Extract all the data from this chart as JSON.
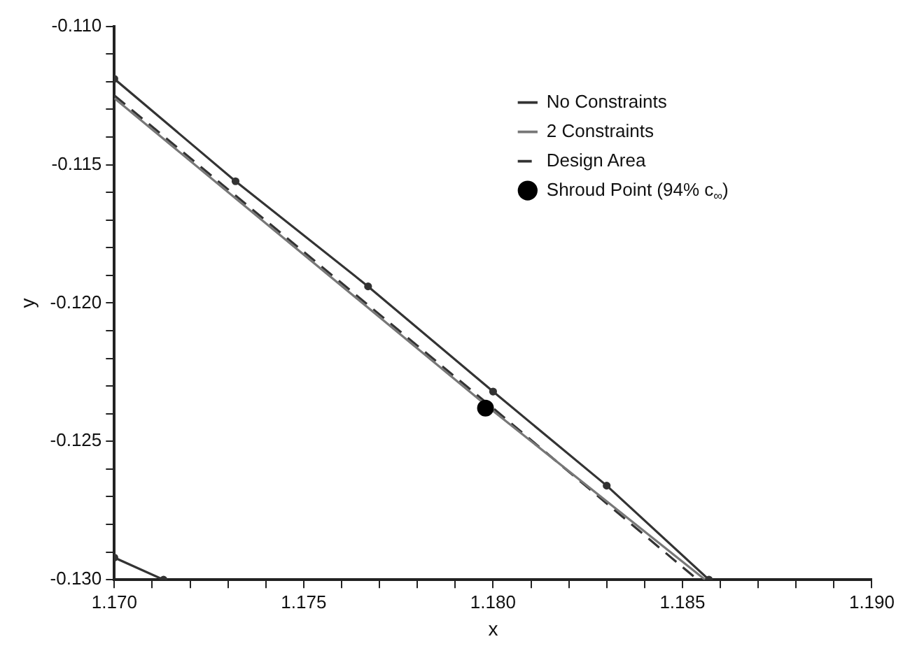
{
  "chart_data": {
    "type": "line",
    "xlabel": "x",
    "ylabel": "y",
    "xlim": [
      1.17,
      1.19
    ],
    "ylim": [
      -0.13,
      -0.11
    ],
    "xticks": [
      {
        "value": 1.17,
        "label": "1.170"
      },
      {
        "value": 1.171,
        "label": null
      },
      {
        "value": 1.172,
        "label": null
      },
      {
        "value": 1.173,
        "label": null
      },
      {
        "value": 1.174,
        "label": null
      },
      {
        "value": 1.175,
        "label": "1.175"
      },
      {
        "value": 1.176,
        "label": null
      },
      {
        "value": 1.177,
        "label": null
      },
      {
        "value": 1.178,
        "label": null
      },
      {
        "value": 1.179,
        "label": null
      },
      {
        "value": 1.18,
        "label": "1.180"
      },
      {
        "value": 1.181,
        "label": null
      },
      {
        "value": 1.182,
        "label": null
      },
      {
        "value": 1.183,
        "label": null
      },
      {
        "value": 1.184,
        "label": null
      },
      {
        "value": 1.185,
        "label": "1.185"
      },
      {
        "value": 1.186,
        "label": null
      },
      {
        "value": 1.187,
        "label": null
      },
      {
        "value": 1.188,
        "label": null
      },
      {
        "value": 1.189,
        "label": null
      },
      {
        "value": 1.19,
        "label": "1.190"
      }
    ],
    "yticks": [
      {
        "value": -0.13,
        "label": "-0.130"
      },
      {
        "value": -0.129,
        "label": null
      },
      {
        "value": -0.128,
        "label": null
      },
      {
        "value": -0.127,
        "label": null
      },
      {
        "value": -0.126,
        "label": null
      },
      {
        "value": -0.125,
        "label": "-0.125"
      },
      {
        "value": -0.124,
        "label": null
      },
      {
        "value": -0.123,
        "label": null
      },
      {
        "value": -0.122,
        "label": null
      },
      {
        "value": -0.121,
        "label": null
      },
      {
        "value": -0.12,
        "label": "-0.120"
      },
      {
        "value": -0.119,
        "label": null
      },
      {
        "value": -0.118,
        "label": null
      },
      {
        "value": -0.117,
        "label": null
      },
      {
        "value": -0.116,
        "label": null
      },
      {
        "value": -0.115,
        "label": "-0.115"
      },
      {
        "value": -0.114,
        "label": null
      },
      {
        "value": -0.113,
        "label": null
      },
      {
        "value": -0.112,
        "label": null
      },
      {
        "value": -0.111,
        "label": null
      },
      {
        "value": -0.11,
        "label": "-0.110"
      }
    ],
    "grid": false,
    "legend": "top right",
    "series": [
      {
        "name": "No Constraints",
        "type": "line",
        "color": "#333333",
        "marker": "circle",
        "line_style": "solid",
        "x": [
          1.17,
          1.1732,
          1.1767,
          1.18,
          1.183,
          1.1857
        ],
        "values": [
          -0.1119,
          -0.1156,
          -0.1194,
          -0.1232,
          -0.1266,
          -0.13
        ]
      },
      {
        "name": "2 Constraints",
        "color": "#777777",
        "marker": "none",
        "line_style": "solid",
        "x": [
          1.17,
          1.18,
          1.1856
        ],
        "values": [
          -0.1126,
          -0.1239,
          -0.13
        ]
      },
      {
        "name": "Design Area",
        "color": "#333333",
        "marker": "none",
        "line_style": "dashed",
        "x": [
          1.17,
          1.18,
          1.1854
        ],
        "values": [
          -0.1125,
          -0.1238,
          -0.13
        ]
      },
      {
        "name": "Shroud Point (94% c$_{∞}$)",
        "type": "scatter",
        "color": "#000000",
        "marker": "circle",
        "x": [
          1.1798
        ],
        "values": [
          -0.1238
        ]
      },
      {
        "color": "#333333",
        "marker": "circle",
        "line_style": "solid",
        "x": [
          1.17,
          1.1713
        ],
        "values": [
          -0.1292,
          -0.13
        ]
      }
    ]
  }
}
